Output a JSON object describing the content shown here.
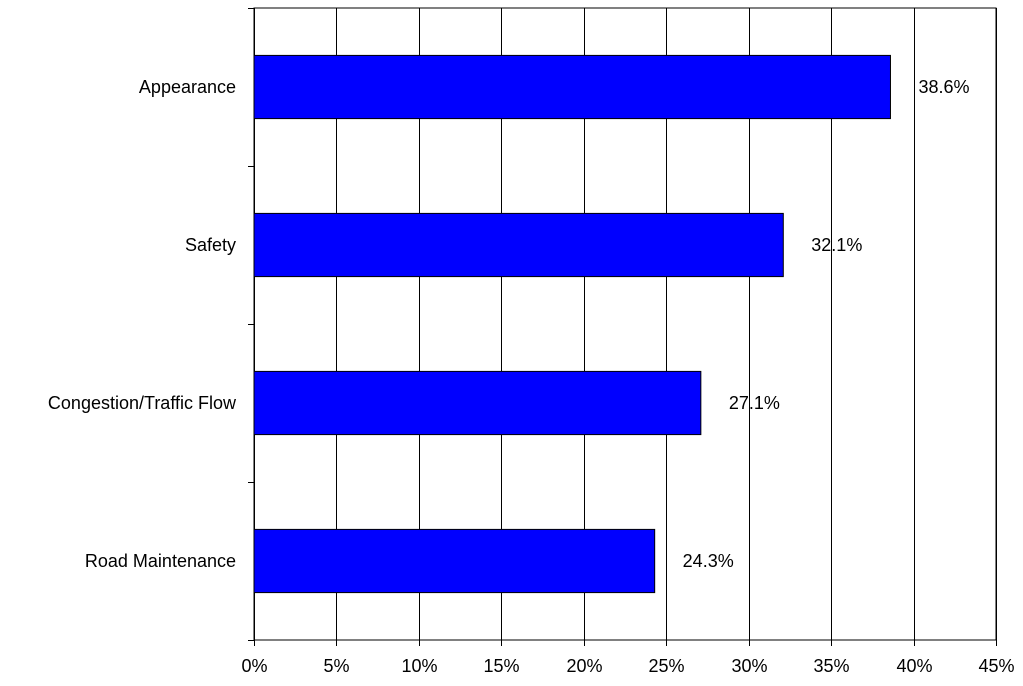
{
  "chart_data": {
    "type": "bar",
    "orientation": "horizontal",
    "categories": [
      "Appearance",
      "Safety",
      "Congestion/Traffic Flow",
      "Road Maintenance"
    ],
    "values": [
      38.6,
      32.1,
      27.1,
      24.3
    ],
    "value_labels": [
      "38.6%",
      "32.1%",
      "27.1%",
      "24.3%"
    ],
    "xlim": [
      0,
      45
    ],
    "xticks": [
      0,
      5,
      10,
      15,
      20,
      25,
      30,
      35,
      40,
      45
    ],
    "xtick_labels": [
      "0%",
      "5%",
      "10%",
      "15%",
      "20%",
      "25%",
      "30%",
      "35%",
      "40%",
      "45%"
    ],
    "grid": "vertical",
    "bar_color": "#0000ff",
    "title": "",
    "xlabel": "",
    "ylabel": ""
  }
}
